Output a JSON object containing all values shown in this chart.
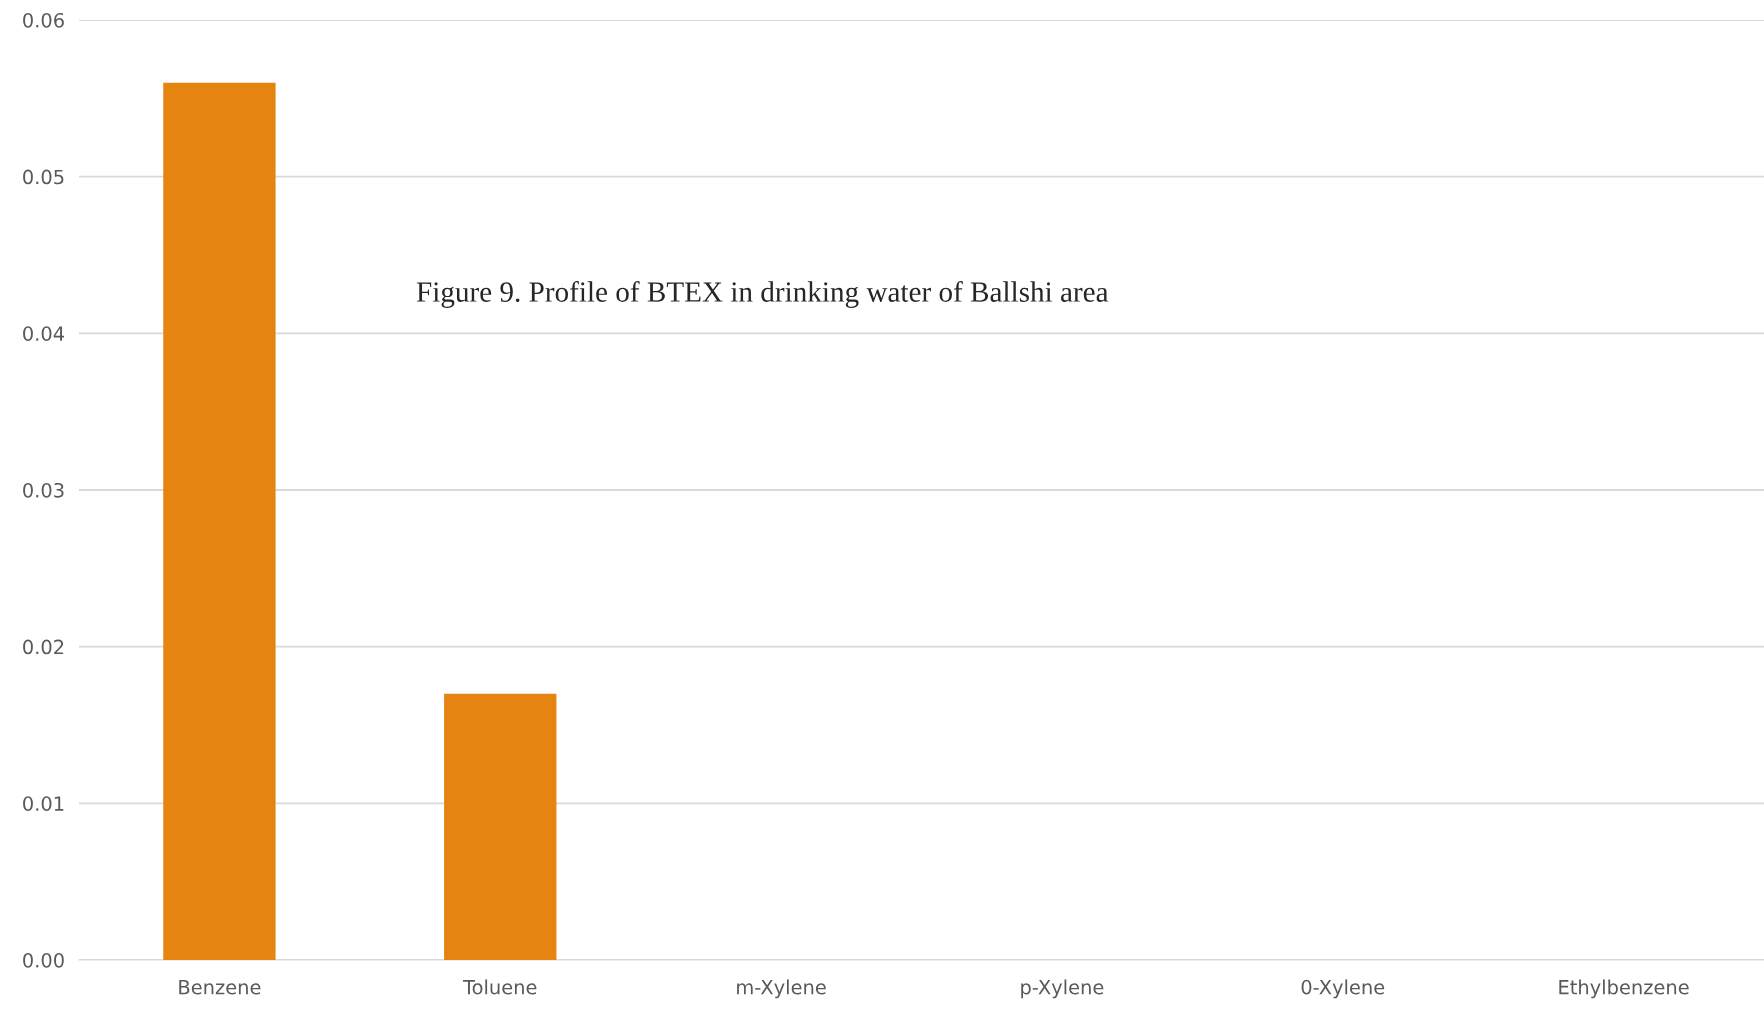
{
  "chart_data": {
    "type": "bar",
    "title": "Figure 9. Profile of BTEX in drinking water of Ballshi area",
    "categories": [
      "Benzene",
      "Toluene",
      "m-Xylene",
      "p-Xylene",
      "0-Xylene",
      "Ethylbenzene"
    ],
    "values": [
      0.056,
      0.017,
      0,
      0,
      0,
      0
    ],
    "color": "#e58411",
    "ylim": [
      0,
      0.06
    ],
    "yticks": [
      {
        "value": 0,
        "label": "0.00"
      },
      {
        "value": 0.01,
        "label": "0.01"
      },
      {
        "value": 0.02,
        "label": "0.02"
      },
      {
        "value": 0.03,
        "label": "0.03"
      },
      {
        "value": 0.04,
        "label": "0.04"
      },
      {
        "value": 0.05,
        "label": "0.05"
      },
      {
        "value": 0.06,
        "label": "0.06"
      }
    ],
    "grid": "y",
    "legend": false
  }
}
